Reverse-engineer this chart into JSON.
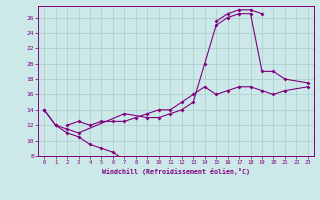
{
  "xlabel": "Windchill (Refroidissement éolien,°C)",
  "bg_color": "#cce8e8",
  "line_color": "#800080",
  "grid_color": "#aacccc",
  "xlim": [
    -0.5,
    23.5
  ],
  "ylim": [
    8,
    27.5
  ],
  "xticks": [
    0,
    1,
    2,
    3,
    4,
    5,
    6,
    7,
    8,
    9,
    10,
    11,
    12,
    13,
    14,
    15,
    16,
    17,
    18,
    19,
    20,
    21,
    22,
    23
  ],
  "yticks": [
    8,
    10,
    12,
    14,
    16,
    18,
    20,
    22,
    24,
    26
  ],
  "seg1_x": [
    0,
    1,
    2,
    3,
    4,
    5,
    6,
    7
  ],
  "seg1_y": [
    14,
    12,
    11,
    10.5,
    9.5,
    9.0,
    8.5,
    7.5
  ],
  "seg2_x": [
    0,
    1,
    2,
    3,
    7,
    9,
    10,
    11,
    12,
    13,
    14,
    15,
    16,
    17,
    18,
    19,
    20,
    21,
    23
  ],
  "seg2_y": [
    14,
    12,
    11.5,
    11,
    13.5,
    13,
    13,
    13.5,
    14,
    15,
    20,
    25,
    26,
    26.5,
    26.5,
    19,
    19,
    18,
    17.5
  ],
  "seg3_x": [
    2,
    3,
    4,
    5,
    6,
    7,
    8,
    9,
    10,
    11,
    12,
    13,
    14,
    15,
    16,
    17,
    18,
    19,
    20,
    21,
    23
  ],
  "seg3_y": [
    12,
    12.5,
    12,
    12.5,
    12.5,
    12.5,
    13,
    13.5,
    14,
    14,
    15,
    16,
    17,
    16,
    16.5,
    17,
    17,
    16.5,
    16,
    16.5,
    17
  ],
  "seg4_x": [
    15,
    16,
    17,
    18,
    19
  ],
  "seg4_y": [
    25.5,
    26.5,
    27,
    27,
    26.5
  ]
}
